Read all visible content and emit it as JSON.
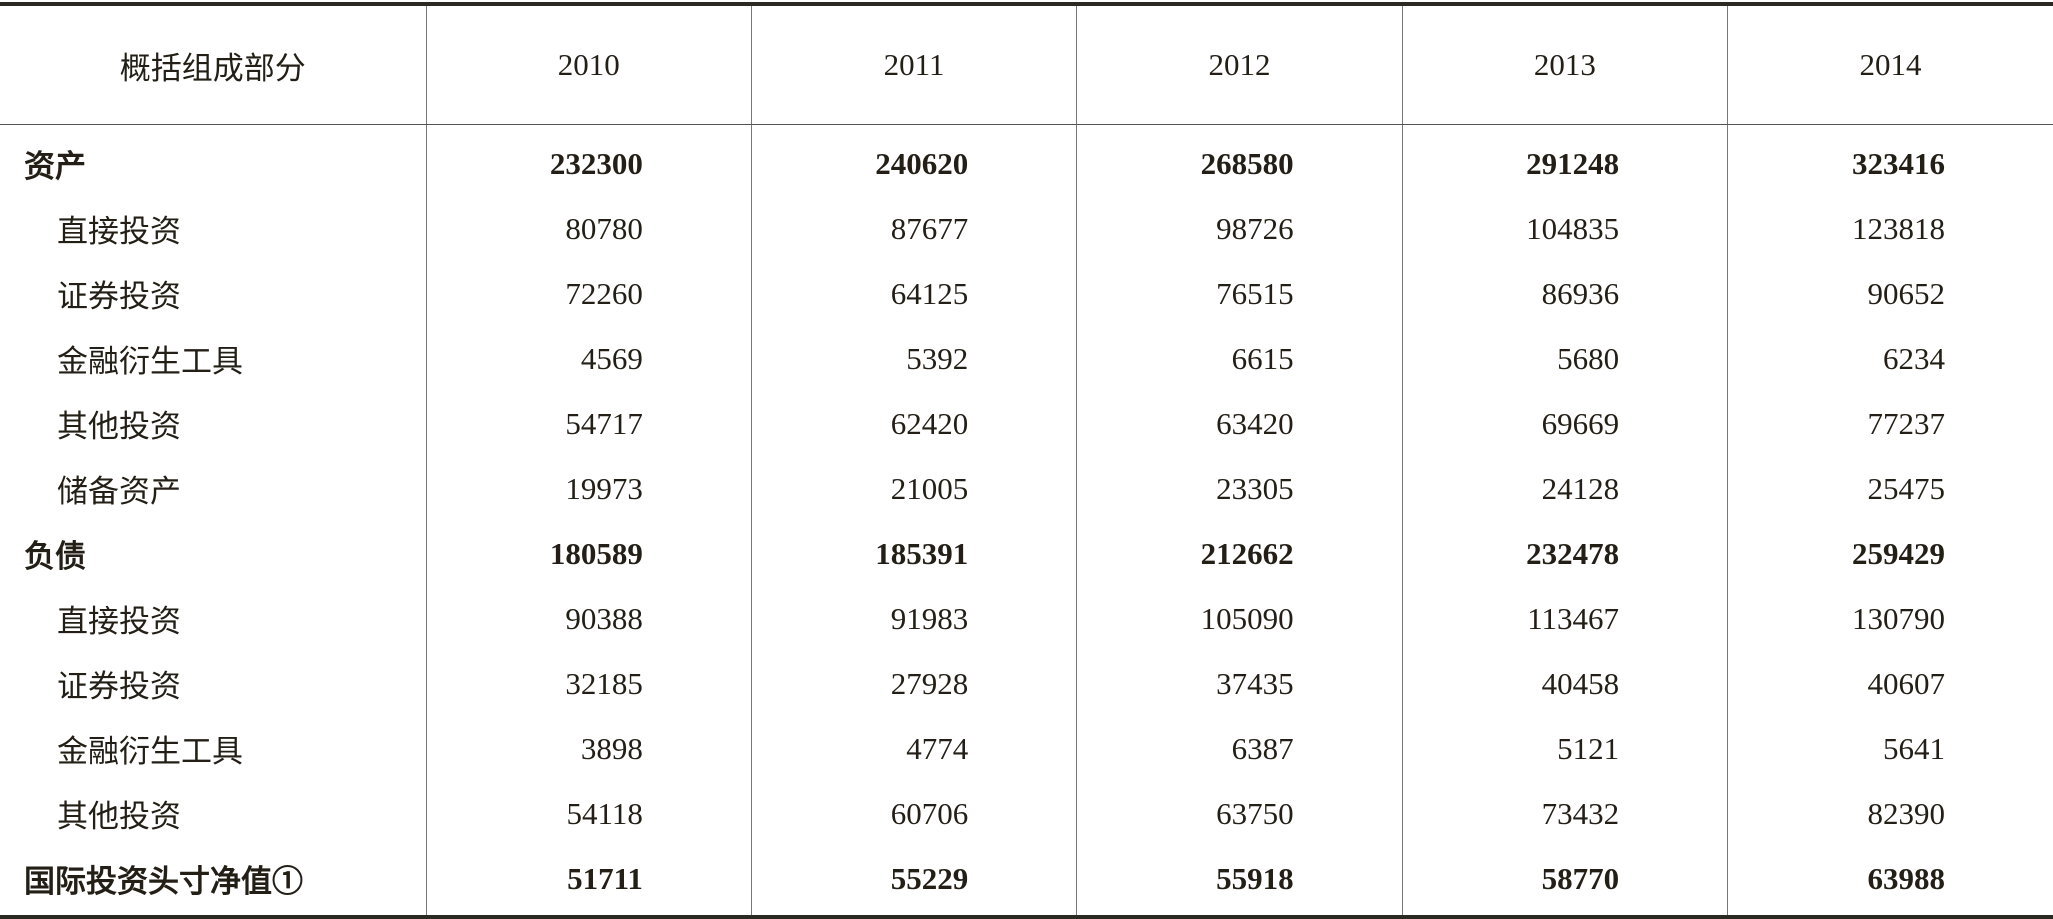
{
  "table": {
    "header": [
      "概括组成部分",
      "2010",
      "2011",
      "2012",
      "2013",
      "2014"
    ],
    "sections": [
      {
        "label": "资产",
        "values": [
          232300,
          240620,
          268580,
          291248,
          323416
        ],
        "items": [
          {
            "label": "直接投资",
            "values": [
              80780,
              87677,
              98726,
              104835,
              123818
            ]
          },
          {
            "label": "证券投资",
            "values": [
              72260,
              64125,
              76515,
              86936,
              90652
            ]
          },
          {
            "label": "金融衍生工具",
            "values": [
              4569,
              5392,
              6615,
              5680,
              6234
            ]
          },
          {
            "label": "其他投资",
            "values": [
              54717,
              62420,
              63420,
              69669,
              77237
            ]
          },
          {
            "label": "储备资产",
            "values": [
              19973,
              21005,
              23305,
              24128,
              25475
            ]
          }
        ]
      },
      {
        "label": "负债",
        "values": [
          180589,
          185391,
          212662,
          232478,
          259429
        ],
        "items": [
          {
            "label": "直接投资",
            "values": [
              90388,
              91983,
              105090,
              113467,
              130790
            ]
          },
          {
            "label": "证券投资",
            "values": [
              32185,
              27928,
              37435,
              40458,
              40607
            ]
          },
          {
            "label": "金融衍生工具",
            "values": [
              3898,
              4774,
              6387,
              5121,
              5641
            ]
          },
          {
            "label": "其他投资",
            "values": [
              54118,
              60706,
              63750,
              73432,
              82390
            ]
          }
        ]
      },
      {
        "label": "国际投资头寸净值①",
        "values": [
          51711,
          55229,
          55918,
          58770,
          63988
        ]
      }
    ]
  }
}
